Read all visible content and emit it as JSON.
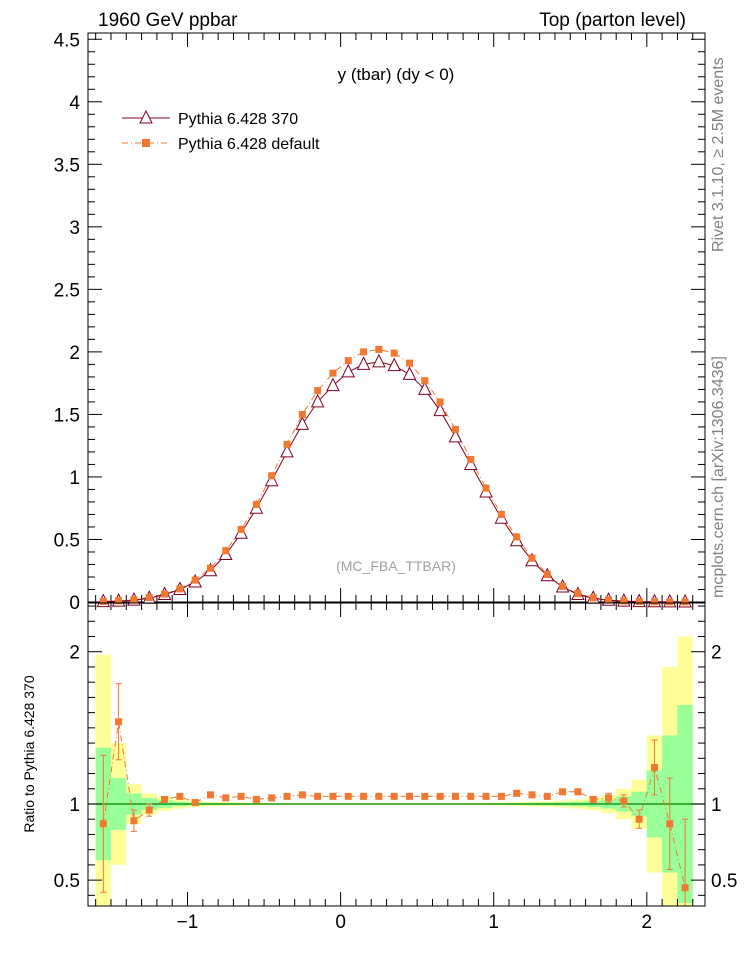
{
  "header": {
    "left": "1960 GeV ppbar",
    "right": "Top (parton level)"
  },
  "side_labels": {
    "rivet": "Rivet 3.1.10, ≥ 2.5M events",
    "mcplots": "mcplots.cern.ch [arXiv:1306.3436]"
  },
  "chart_data": {
    "type": "line",
    "title": "y (tbar) (dy < 0)",
    "watermark": "(MC_FBA_TTBAR)",
    "legend_position": "top-left",
    "xlim": [
      -1.65,
      2.38
    ],
    "main_ylim": [
      0,
      4.55
    ],
    "main_yticks": [
      "0",
      "0.5",
      "1",
      "1.5",
      "2",
      "2.5",
      "3",
      "3.5",
      "4",
      "4.5"
    ],
    "xticks": [
      "−1",
      "0",
      "1",
      "2"
    ],
    "ratio_ylim": [
      0.33,
      2.32
    ],
    "ratio_yticks": [
      "0.5",
      "1",
      "2"
    ],
    "ratio_ylabel": "Ratio to Pythia 6.428 370",
    "x": [
      -1.55,
      -1.45,
      -1.35,
      -1.25,
      -1.15,
      -1.05,
      -0.95,
      -0.85,
      -0.75,
      -0.65,
      -0.55,
      -0.45,
      -0.35,
      -0.25,
      -0.15,
      -0.05,
      0.05,
      0.15,
      0.25,
      0.35,
      0.45,
      0.55,
      0.65,
      0.75,
      0.85,
      0.95,
      1.05,
      1.15,
      1.25,
      1.35,
      1.45,
      1.55,
      1.65,
      1.75,
      1.85,
      1.95,
      2.05,
      2.15,
      2.25
    ],
    "series": [
      {
        "name": "Pythia 6.428 370",
        "color": "#800020",
        "marker": "open-triangle",
        "values": [
          0.003,
          0.007,
          0.015,
          0.03,
          0.06,
          0.1,
          0.16,
          0.25,
          0.38,
          0.55,
          0.75,
          0.97,
          1.2,
          1.42,
          1.6,
          1.73,
          1.84,
          1.9,
          1.92,
          1.89,
          1.82,
          1.7,
          1.53,
          1.32,
          1.1,
          0.88,
          0.67,
          0.49,
          0.33,
          0.21,
          0.12,
          0.06,
          0.03,
          0.014,
          0.007,
          0.003,
          0.002,
          0.001,
          0.0005
        ]
      },
      {
        "name": "Pythia 6.428 default",
        "color": "#f07830",
        "marker": "filled-square",
        "values": [
          0.004,
          0.01,
          0.018,
          0.036,
          0.063,
          0.105,
          0.175,
          0.27,
          0.41,
          0.58,
          0.78,
          1.01,
          1.26,
          1.5,
          1.69,
          1.83,
          1.93,
          2,
          2.02,
          1.99,
          1.91,
          1.77,
          1.6,
          1.38,
          1.14,
          0.91,
          0.7,
          0.52,
          0.35,
          0.22,
          0.125,
          0.066,
          0.033,
          0.016,
          0.008,
          0.004,
          0.002,
          0.001,
          0.0005
        ]
      }
    ],
    "ratio": {
      "values": [
        0.87,
        1.54,
        0.89,
        0.96,
        1.03,
        1.05,
        1.01,
        1.06,
        1.04,
        1.05,
        1.03,
        1.04,
        1.05,
        1.06,
        1.05,
        1.05,
        1.05,
        1.05,
        1.05,
        1.05,
        1.05,
        1.05,
        1.05,
        1.05,
        1.05,
        1.05,
        1.05,
        1.07,
        1.06,
        1.05,
        1.08,
        1.08,
        1.03,
        1.04,
        1.02,
        0.9,
        1.24,
        0.87,
        0.45
      ],
      "errors": [
        0.45,
        0.25,
        0.07,
        0.04,
        0.02,
        0.015,
        0.01,
        0.01,
        0.01,
        0.01,
        0.01,
        0.01,
        0.01,
        0.01,
        0.01,
        0.01,
        0.01,
        0.01,
        0.01,
        0.01,
        0.01,
        0.01,
        0.01,
        0.01,
        0.01,
        0.01,
        0.01,
        0.01,
        0.01,
        0.01,
        0.01,
        0.015,
        0.02,
        0.03,
        0.04,
        0.06,
        0.18,
        0.3,
        0.45
      ],
      "band_green": [
        0.37,
        0.17,
        0.07,
        0.04,
        0.025,
        0.015,
        0.01,
        0.008,
        0.006,
        0.005,
        0.004,
        0.004,
        0.003,
        0.003,
        0.003,
        0.003,
        0.003,
        0.003,
        0.003,
        0.003,
        0.003,
        0.003,
        0.003,
        0.003,
        0.004,
        0.004,
        0.005,
        0.006,
        0.008,
        0.01,
        0.012,
        0.015,
        0.02,
        0.03,
        0.05,
        0.08,
        0.22,
        0.45,
        0.65
      ],
      "band_yellow": [
        0.98,
        0.4,
        0.13,
        0.07,
        0.045,
        0.03,
        0.02,
        0.015,
        0.012,
        0.01,
        0.008,
        0.007,
        0.006,
        0.006,
        0.006,
        0.006,
        0.006,
        0.006,
        0.006,
        0.006,
        0.006,
        0.006,
        0.006,
        0.006,
        0.007,
        0.008,
        0.01,
        0.012,
        0.015,
        0.018,
        0.022,
        0.03,
        0.04,
        0.06,
        0.1,
        0.16,
        0.45,
        0.9,
        1.1
      ]
    }
  }
}
